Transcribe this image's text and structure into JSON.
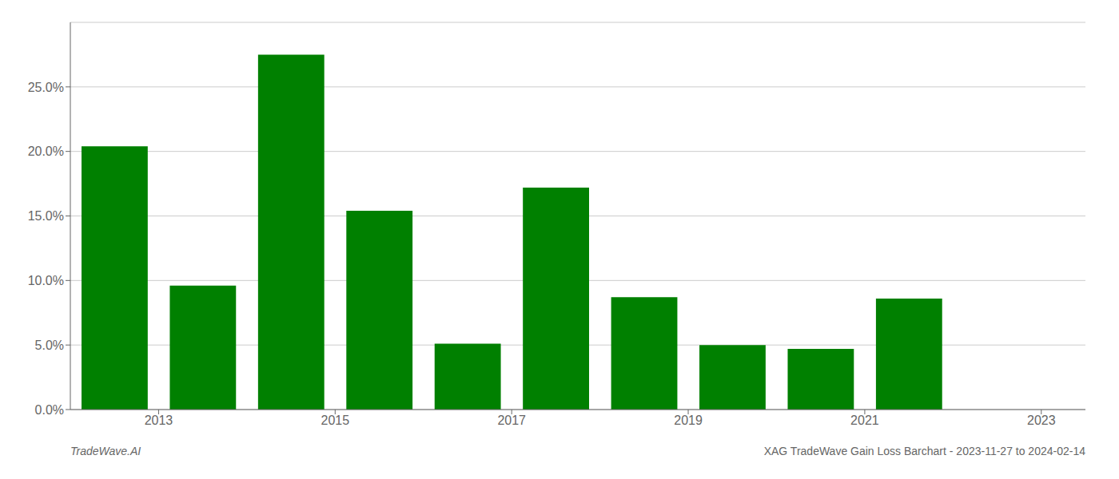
{
  "chart_data": {
    "type": "bar",
    "x": [
      2013,
      2014,
      2015,
      2016,
      2017,
      2018,
      2019,
      2020,
      2021,
      2022,
      2023
    ],
    "values": [
      0.204,
      0.096,
      0.275,
      0.154,
      0.051,
      0.172,
      0.087,
      0.05,
      0.047,
      0.086,
      0.0
    ],
    "color": "#008000",
    "xlim": [
      2012.5,
      2024.0
    ],
    "xticks": [
      {
        "value": 2013.5,
        "label": "2013"
      },
      {
        "value": 2015.5,
        "label": "2015"
      },
      {
        "value": 2017.5,
        "label": "2017"
      },
      {
        "value": 2019.5,
        "label": "2019"
      },
      {
        "value": 2021.5,
        "label": "2021"
      },
      {
        "value": 2023.5,
        "label": "2023"
      }
    ],
    "ylim": [
      0,
      0.3
    ],
    "yticks": [
      {
        "value": 0.0,
        "label": "0.0%"
      },
      {
        "value": 0.05,
        "label": "5.0%"
      },
      {
        "value": 0.1,
        "label": "10.0%"
      },
      {
        "value": 0.15,
        "label": "15.0%"
      },
      {
        "value": 0.2,
        "label": "20.0%"
      },
      {
        "value": 0.25,
        "label": "25.0%"
      }
    ],
    "grid": true,
    "annotations": [
      "TradeWave.AI",
      "XAG TradeWave Gain Loss Barchart - 2023-11-27 to 2024-02-14"
    ]
  }
}
